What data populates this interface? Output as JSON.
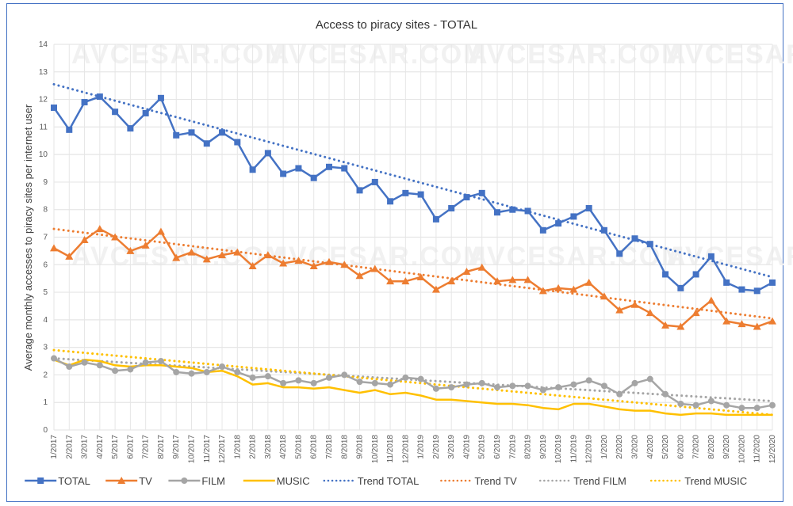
{
  "chart_data": {
    "type": "line",
    "title": "Access to piracy sites - TOTAL",
    "xlabel": "",
    "ylabel": "Average monthly accesses to piracy sites per internet user",
    "ylim": [
      0,
      14
    ],
    "yticks": [
      0,
      1,
      2,
      3,
      4,
      5,
      6,
      7,
      8,
      9,
      10,
      11,
      12,
      13,
      14
    ],
    "grid": true,
    "legend_position": "bottom",
    "watermark": "AVCESAR.COM",
    "x": [
      "1/2017",
      "2/2017",
      "3/2017",
      "4/2017",
      "5/2017",
      "6/2017",
      "7/2017",
      "8/2017",
      "9/2017",
      "10/2017",
      "11/2017",
      "12/2017",
      "1/2018",
      "2/2018",
      "3/2018",
      "4/2018",
      "5/2018",
      "6/2018",
      "7/2018",
      "8/2018",
      "9/2018",
      "10/2018",
      "11/2018",
      "12/2018",
      "1/2019",
      "2/2019",
      "3/2019",
      "4/2019",
      "5/2019",
      "6/2019",
      "7/2019",
      "8/2019",
      "9/2019",
      "10/2019",
      "11/2019",
      "12/2019",
      "1/2020",
      "2/2020",
      "3/2020",
      "4/2020",
      "5/2020",
      "6/2020",
      "7/2020",
      "8/2020",
      "9/2020",
      "10/2020",
      "11/2020",
      "12/2020"
    ],
    "series": [
      {
        "name": "TOTAL",
        "color": "#4472c4",
        "marker": "square",
        "style": "solid",
        "values": [
          11.7,
          10.9,
          11.9,
          12.1,
          11.55,
          10.95,
          11.5,
          12.05,
          10.7,
          10.8,
          10.4,
          10.8,
          10.45,
          9.45,
          10.05,
          9.3,
          9.5,
          9.15,
          9.55,
          9.5,
          8.7,
          9.0,
          8.3,
          8.6,
          8.55,
          7.65,
          8.05,
          8.45,
          8.6,
          7.9,
          8.0,
          7.95,
          7.25,
          7.5,
          7.75,
          8.05,
          7.25,
          6.4,
          6.95,
          6.75,
          5.65,
          5.15,
          5.65,
          6.3,
          5.35,
          5.1,
          5.05,
          5.35
        ]
      },
      {
        "name": "TV",
        "color": "#ed7d31",
        "marker": "triangle",
        "style": "solid",
        "values": [
          6.6,
          6.3,
          6.9,
          7.3,
          7.0,
          6.5,
          6.7,
          7.2,
          6.25,
          6.45,
          6.2,
          6.35,
          6.45,
          5.95,
          6.35,
          6.05,
          6.15,
          5.95,
          6.1,
          6.0,
          5.6,
          5.85,
          5.4,
          5.4,
          5.55,
          5.1,
          5.4,
          5.75,
          5.9,
          5.4,
          5.45,
          5.45,
          5.05,
          5.15,
          5.1,
          5.35,
          4.85,
          4.35,
          4.55,
          4.25,
          3.8,
          3.75,
          4.25,
          4.7,
          3.95,
          3.85,
          3.75,
          3.95
        ]
      },
      {
        "name": "FILM",
        "color": "#a5a5a5",
        "marker": "circle",
        "style": "solid",
        "values": [
          2.6,
          2.3,
          2.45,
          2.35,
          2.15,
          2.2,
          2.45,
          2.5,
          2.1,
          2.05,
          2.1,
          2.3,
          2.1,
          1.9,
          1.95,
          1.7,
          1.8,
          1.7,
          1.9,
          2.0,
          1.75,
          1.7,
          1.65,
          1.9,
          1.85,
          1.5,
          1.55,
          1.65,
          1.7,
          1.55,
          1.6,
          1.6,
          1.45,
          1.55,
          1.65,
          1.8,
          1.6,
          1.3,
          1.7,
          1.85,
          1.3,
          0.95,
          0.9,
          1.05,
          0.9,
          0.8,
          0.8,
          0.9
        ]
      },
      {
        "name": "MUSIC",
        "color": "#ffc000",
        "marker": "none",
        "style": "solid",
        "values": [
          2.55,
          2.35,
          2.55,
          2.5,
          2.35,
          2.3,
          2.35,
          2.35,
          2.3,
          2.25,
          2.1,
          2.15,
          1.95,
          1.65,
          1.7,
          1.55,
          1.55,
          1.5,
          1.55,
          1.45,
          1.35,
          1.45,
          1.3,
          1.35,
          1.25,
          1.1,
          1.1,
          1.05,
          1.0,
          0.95,
          0.95,
          0.9,
          0.8,
          0.75,
          0.95,
          0.95,
          0.85,
          0.75,
          0.7,
          0.7,
          0.6,
          0.55,
          0.6,
          0.6,
          0.55,
          0.55,
          0.55,
          0.55
        ]
      },
      {
        "name": "Trend TOTAL",
        "color": "#4472c4",
        "marker": "none",
        "style": "dotted",
        "values_linear": [
          12.55,
          5.55
        ]
      },
      {
        "name": "Trend TV",
        "color": "#ed7d31",
        "marker": "none",
        "style": "dotted",
        "values_linear": [
          7.3,
          4.05
        ]
      },
      {
        "name": "Trend FILM",
        "color": "#a5a5a5",
        "marker": "none",
        "style": "dotted",
        "values_linear": [
          2.6,
          1.05
        ]
      },
      {
        "name": "Trend MUSIC",
        "color": "#ffc000",
        "marker": "none",
        "style": "dotted",
        "values_linear": [
          2.9,
          0.55
        ]
      }
    ],
    "legend": [
      "TOTAL",
      "TV",
      "FILM",
      "MUSIC",
      "Trend TOTAL",
      "Trend TV",
      "Trend FILM",
      "Trend MUSIC"
    ]
  },
  "colors": {
    "frame": "#4472c4",
    "grid": "#e6e6e6",
    "text": "#404040"
  }
}
